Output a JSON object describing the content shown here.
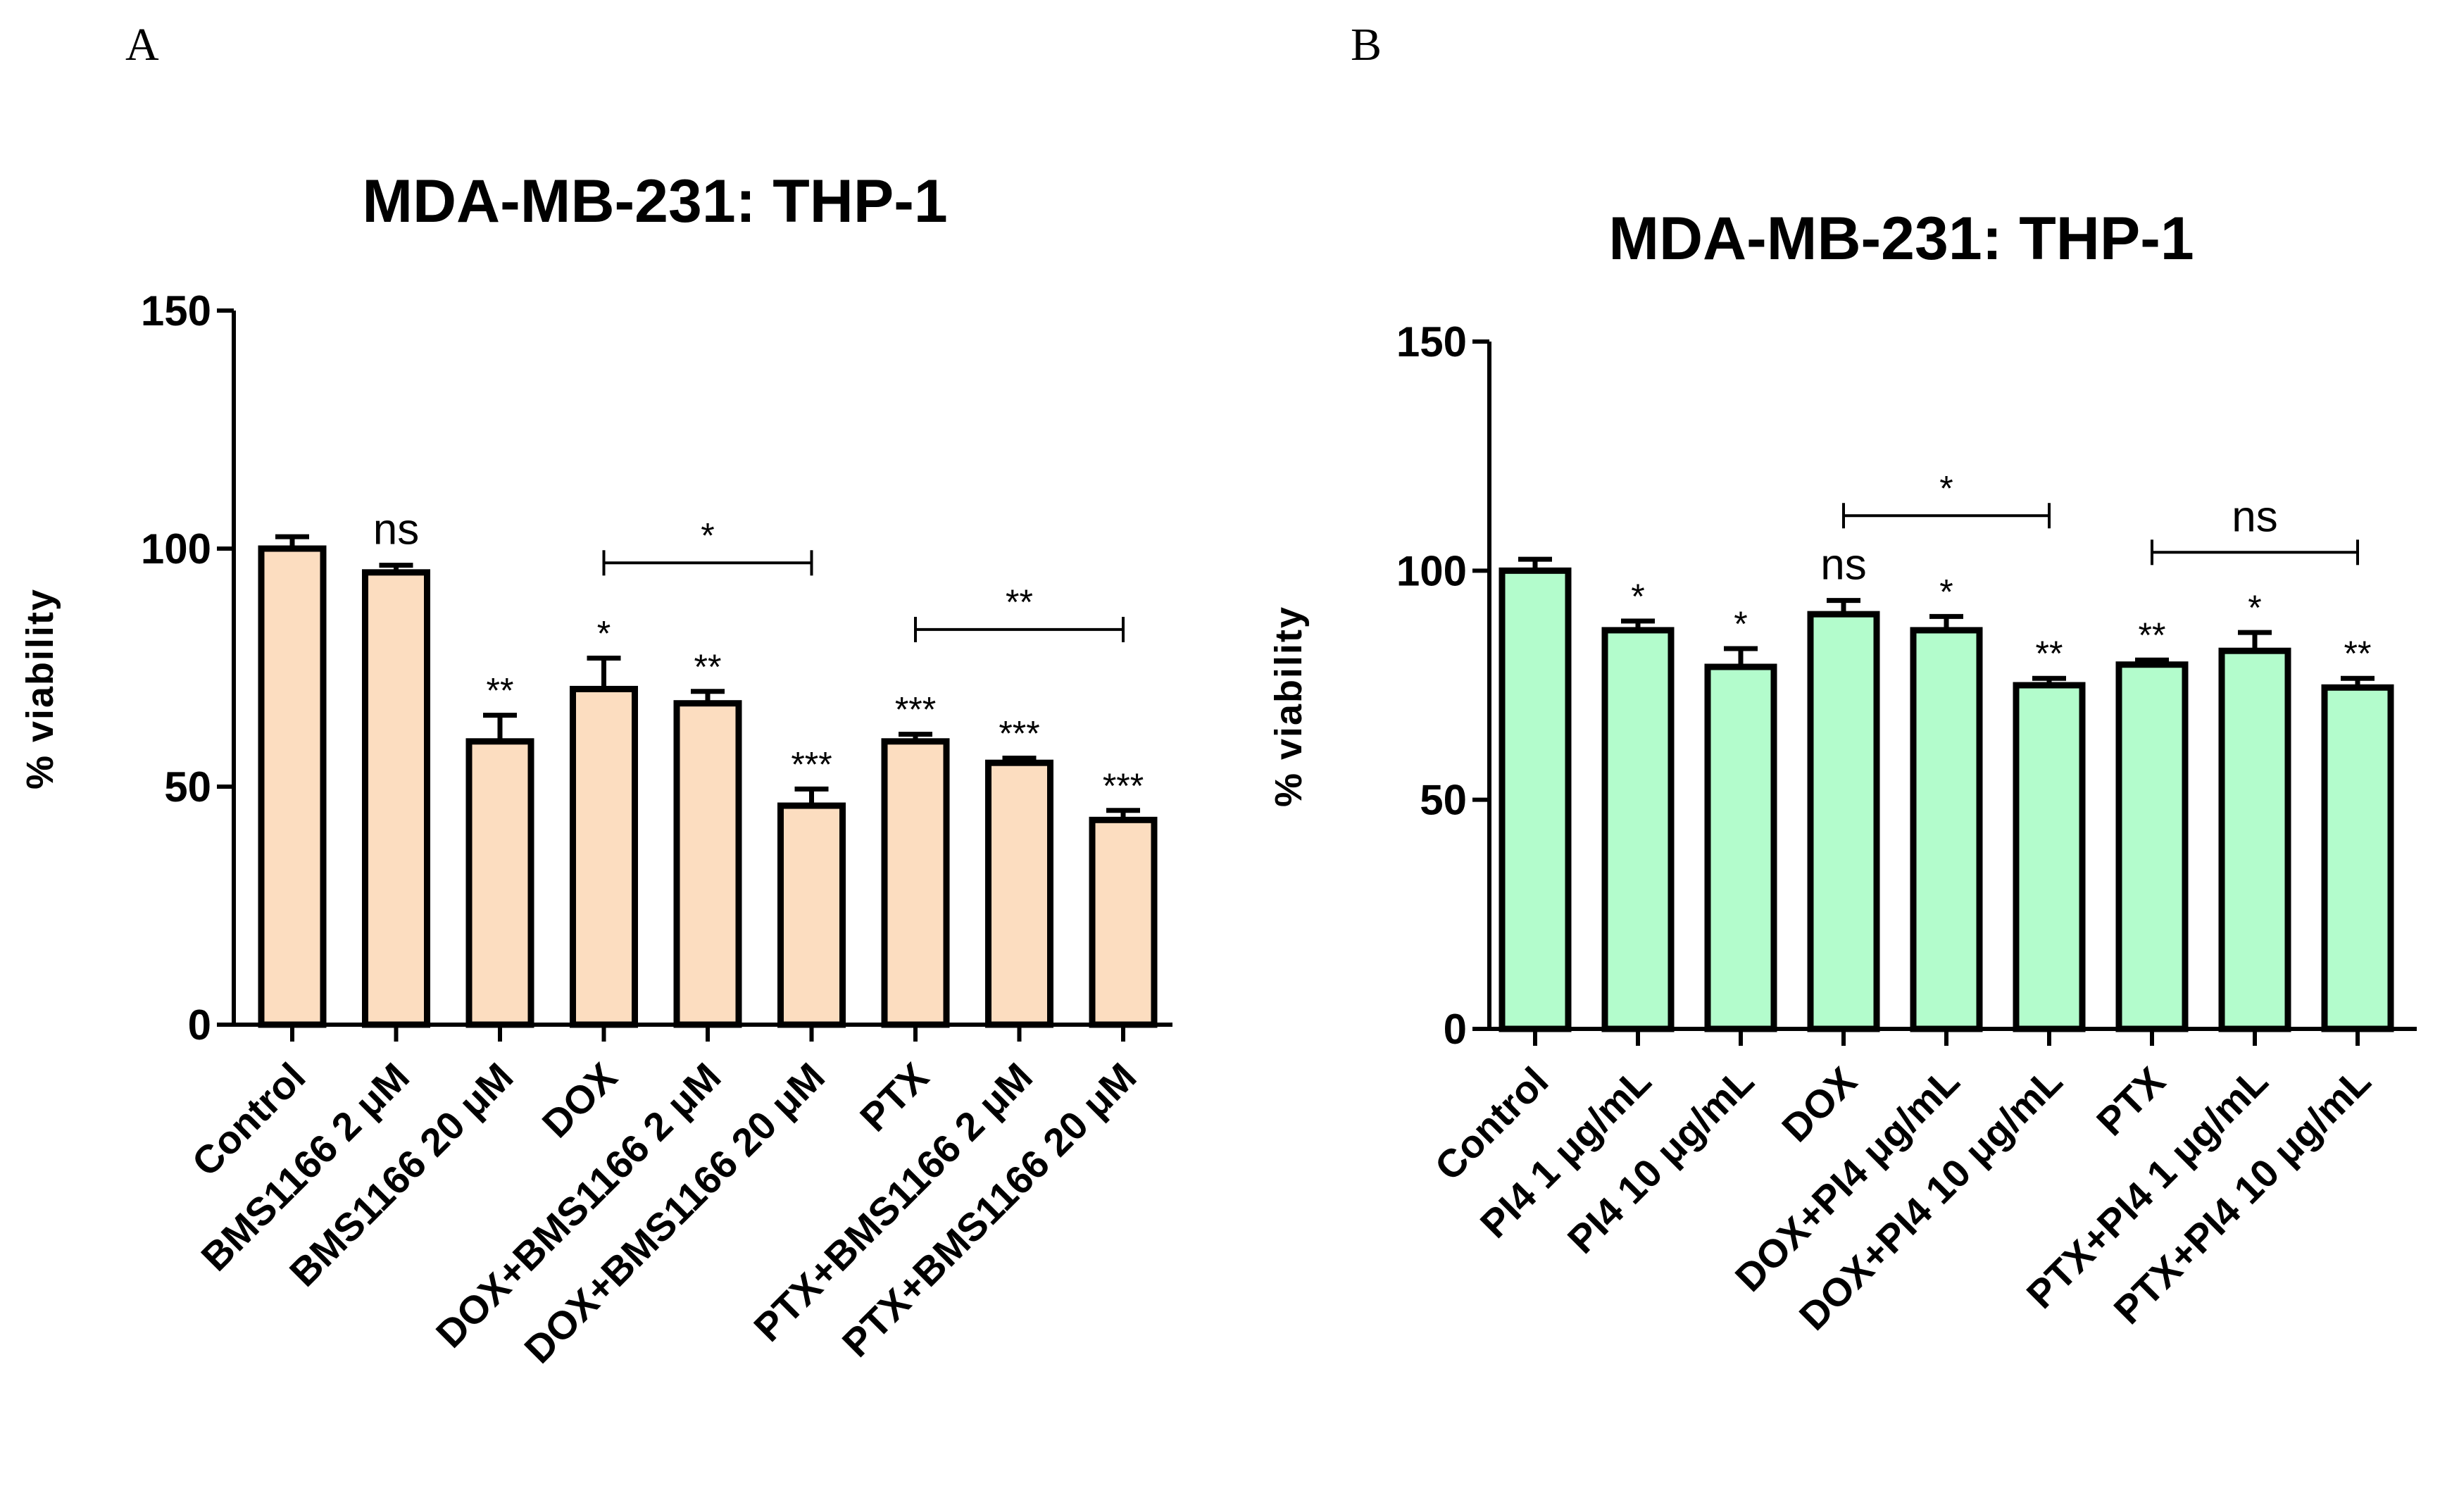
{
  "panels": [
    {
      "letter": "A"
    },
    {
      "letter": "B"
    }
  ],
  "chart_data": [
    {
      "type": "bar",
      "title": "MDA-MB-231: THP-1",
      "xlabel": "",
      "ylabel": "% viability",
      "ylim": [
        0,
        150
      ],
      "yticks": [
        0,
        50,
        100,
        150
      ],
      "bar_color": "#FCDDC0",
      "edge_color": "#000000",
      "categories": [
        "Control",
        "BMS1166 2 μM",
        "BMS1166 20 μM",
        "DOX",
        "DOX+BMS1166 2 μM",
        "DOX+BMS1166 20 μM",
        "PTX",
        "PTX+BMS1166 2 μM",
        "PTX+BMS1166 20 μM"
      ],
      "values": [
        100,
        95,
        59.5,
        70.5,
        67.5,
        46,
        59.5,
        55,
        43
      ],
      "errors": [
        2.5,
        1.5,
        5.5,
        6.5,
        2.5,
        3.5,
        1.5,
        1,
        2
      ],
      "significance": [
        "",
        "ns",
        "**",
        "*",
        "**",
        "***",
        "***",
        "***",
        "***"
      ],
      "brackets": [
        {
          "from": 3,
          "to": 5,
          "y": 97,
          "label": "*"
        },
        {
          "from": 6,
          "to": 8,
          "y": 83,
          "label": "**"
        }
      ]
    },
    {
      "type": "bar",
      "title": "MDA-MB-231: THP-1",
      "xlabel": "",
      "ylabel": "% viability",
      "ylim": [
        0,
        150
      ],
      "yticks": [
        0,
        50,
        100,
        150
      ],
      "bar_color": "#B3FCCC",
      "edge_color": "#000000",
      "categories": [
        "Control",
        "PI4 1 μg/mL",
        "PI4 10 μg/mL",
        "DOX",
        "DOX+PI4 μg/mL",
        "DOX+PI4 10 μg/mL",
        "PTX",
        "PTX+PI4 1 μg/mL",
        "PTX+PI4 10 μg/mL"
      ],
      "values": [
        100,
        87,
        79,
        90.5,
        87,
        75,
        79.5,
        82.5,
        74.5
      ],
      "errors": [
        2.5,
        2,
        4,
        3,
        3,
        1.5,
        1,
        4,
        2
      ],
      "significance": [
        "",
        "*",
        "*",
        "ns",
        "*",
        "**",
        "**",
        "*",
        "**"
      ],
      "brackets": [
        {
          "from": 3,
          "to": 5,
          "y": 112,
          "label": "*"
        },
        {
          "from": 6,
          "to": 8,
          "y": 104,
          "label": "ns"
        }
      ]
    }
  ]
}
